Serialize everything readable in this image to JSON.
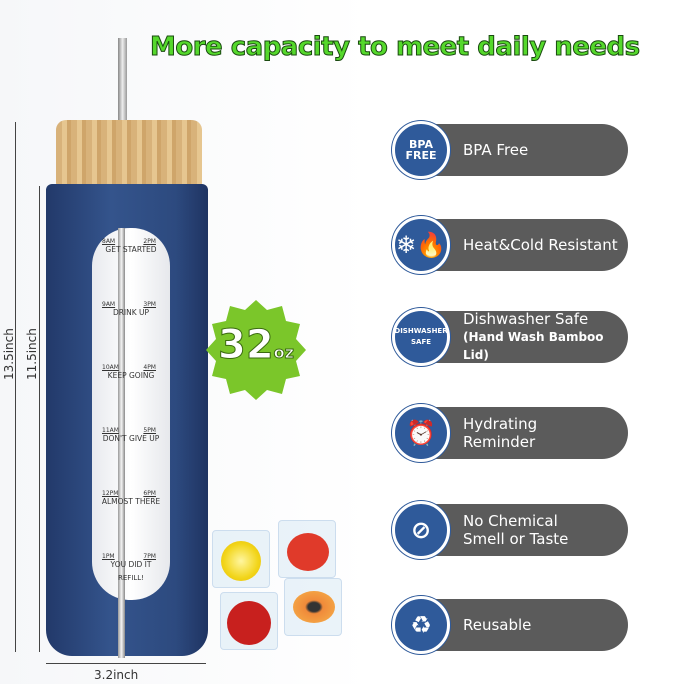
{
  "headline": "More capacity to meet daily needs",
  "badge": {
    "value": "32",
    "unit": "oz"
  },
  "dimensions": {
    "total_height": "13.5inch",
    "body_height": "11.5inch",
    "width": "3.2inch"
  },
  "markers": [
    {
      "left": "8AM",
      "right": "2PM",
      "text": "GET STARTED"
    },
    {
      "left": "9AM",
      "right": "3PM",
      "text": "DRINK UP"
    },
    {
      "left": "10AM",
      "right": "4PM",
      "text": "KEEP GOING"
    },
    {
      "left": "11AM",
      "right": "5PM",
      "text": "DON'T GIVE UP"
    },
    {
      "left": "12PM",
      "right": "6PM",
      "text": "ALMOST THERE"
    },
    {
      "left": "1PM",
      "right": "7PM",
      "text": "YOU DID IT"
    }
  ],
  "refill": "REFILL!",
  "features": [
    {
      "icon": "bpa-free-icon",
      "icon_text": "BPA FREE",
      "label": "BPA Free",
      "sub": ""
    },
    {
      "icon": "heat-cold-icon",
      "icon_text": "❄🔥",
      "label": "Heat&Cold Resistant",
      "sub": ""
    },
    {
      "icon": "dishwasher-icon",
      "icon_text": "DISHWASHER SAFE",
      "label": "Dishwasher Safe",
      "sub": "(Hand Wash Bamboo Lid)"
    },
    {
      "icon": "clock-icon",
      "icon_text": "⏰",
      "label": "Hydrating",
      "sub": "Reminder"
    },
    {
      "icon": "flask-icon",
      "icon_text": "⊘",
      "label": "No Chemical",
      "sub": "Smell or Taste"
    },
    {
      "icon": "recycle-icon",
      "icon_text": "♻",
      "label": "Reusable",
      "sub": ""
    }
  ],
  "colors": {
    "headline": "#55d82c",
    "bottle": "#2f4f84",
    "pill": "#5b5b5b",
    "icon": "#2f5a9a",
    "badge": "#7bc62a"
  }
}
